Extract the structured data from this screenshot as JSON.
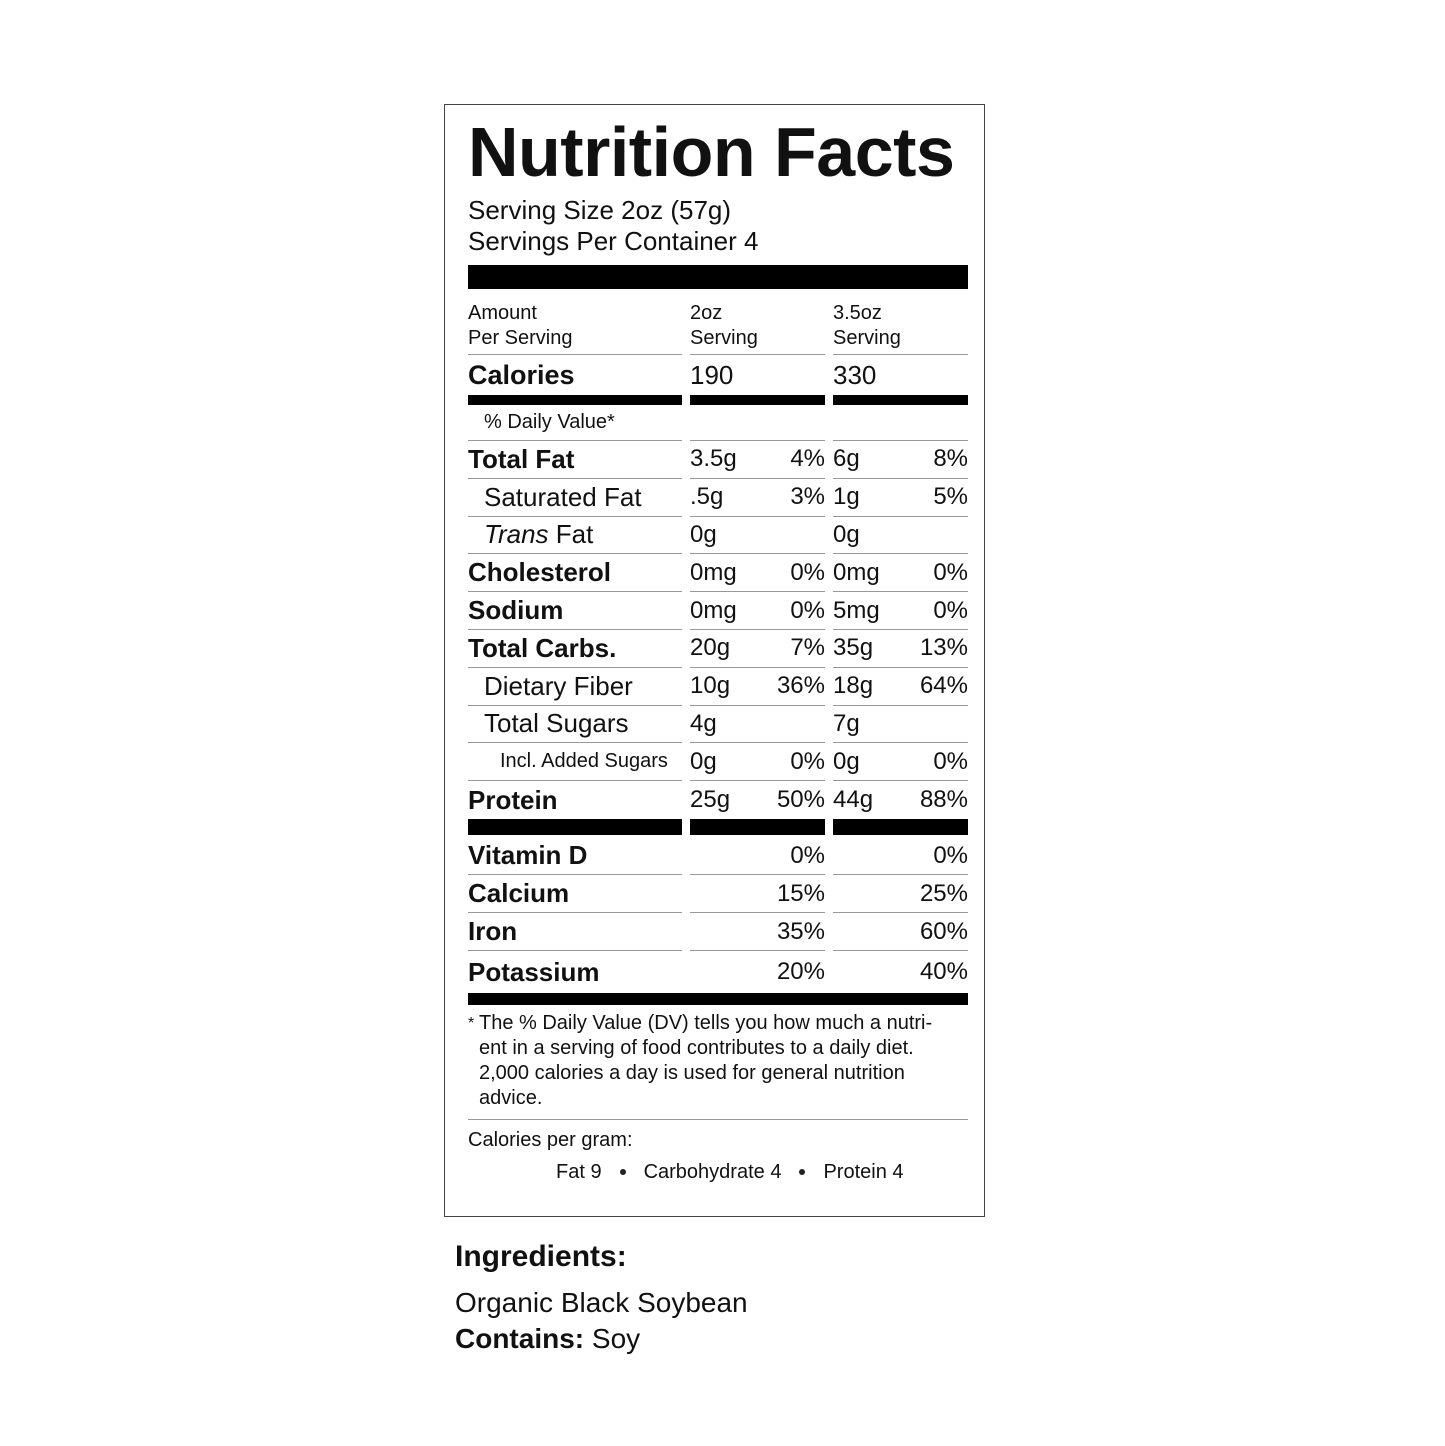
{
  "title": "Nutrition Facts",
  "serving_size": "Serving Size 2oz (57g)",
  "servings_per_container": "Servings Per Container 4",
  "columns": [
    {
      "line1": "Amount",
      "line2": "Per Serving"
    },
    {
      "line1": "2oz",
      "line2": "Serving"
    },
    {
      "line1": "3.5oz",
      "line2": "Serving"
    }
  ],
  "calories": {
    "label": "Calories",
    "values": [
      "190",
      "330"
    ]
  },
  "daily_value_heading": "% Daily Value*",
  "nutrients": [
    {
      "name": "Total Fat",
      "amounts": [
        "3.5g",
        "6g"
      ],
      "percents": [
        "4%",
        "8%"
      ]
    },
    {
      "name": "Saturated Fat",
      "amounts": [
        ".5g",
        "1g"
      ],
      "percents": [
        "3%",
        "5%"
      ]
    },
    {
      "name_italic": "Trans",
      "name": "Fat",
      "amounts": [
        "0g",
        "0g"
      ]
    },
    {
      "name": "Cholesterol",
      "amounts": [
        "0mg",
        "0mg"
      ],
      "percents": [
        "0%",
        "0%"
      ]
    },
    {
      "name": "Sodium",
      "amounts": [
        "0mg",
        "5mg"
      ],
      "percents": [
        "0%",
        "0%"
      ]
    },
    {
      "name": "Total Carbs.",
      "amounts": [
        "20g",
        "35g"
      ],
      "percents": [
        "7%",
        "13%"
      ]
    },
    {
      "name": "Dietary Fiber",
      "amounts": [
        "10g",
        "18g"
      ],
      "percents": [
        "36%",
        "64%"
      ]
    },
    {
      "name": "Total Sugars",
      "amounts": [
        "4g",
        "7g"
      ]
    },
    {
      "name": "Incl. Added Sugars",
      "amounts": [
        "0g",
        "0g"
      ],
      "percents": [
        "0%",
        "0%"
      ]
    },
    {
      "name": "Protein",
      "amounts": [
        "25g",
        "44g"
      ],
      "percents": [
        "50%",
        "88%"
      ]
    }
  ],
  "vitamins": [
    {
      "name": "Vitamin D",
      "percents": [
        "0%",
        "0%"
      ]
    },
    {
      "name": "Calcium",
      "percents": [
        "15%",
        "25%"
      ]
    },
    {
      "name": "Iron",
      "percents": [
        "35%",
        "60%"
      ]
    },
    {
      "name": "Potassium",
      "percents": [
        "20%",
        "40%"
      ]
    }
  ],
  "footnote": {
    "mark": "*",
    "lines": [
      "The % Daily Value (DV) tells you how much a nutri-",
      "ent in a serving of food contributes to a daily diet.",
      "2,000 calories a day is used for general nutrition",
      "advice."
    ]
  },
  "calories_per_gram": {
    "label": "Calories per gram:",
    "items": [
      "Fat 9",
      "Carbohydrate 4",
      "Protein 4"
    ]
  },
  "ingredients": {
    "heading": "Ingredients:",
    "text": "Organic Black Soybean",
    "contains_label": "Contains:",
    "contains": "Soy"
  }
}
